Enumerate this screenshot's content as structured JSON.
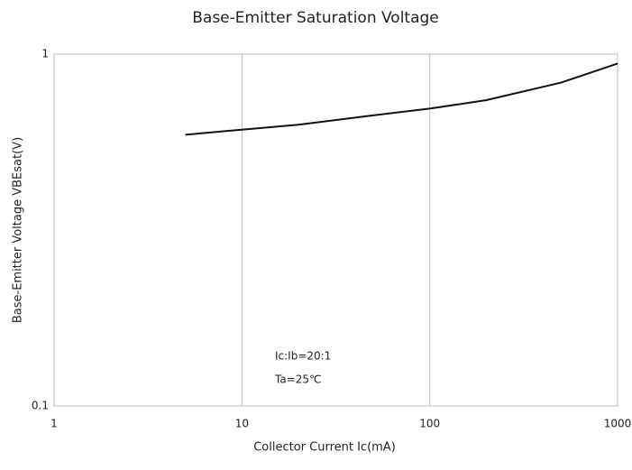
{
  "chart_data": {
    "type": "line",
    "title": "Base-Emitter Saturation Voltage",
    "x_label": "Collector Current  Ic(mA)",
    "y_label": "Base-Emitter Voltage  VBEsat(V)",
    "annotations": [
      "Ic:Ib=20:1",
      "Ta=25℃"
    ],
    "log_x": true,
    "log_y": true,
    "grid": true,
    "xlim": [
      1,
      1000
    ],
    "xticks": [
      1,
      10,
      100,
      1000
    ],
    "ylim": [
      0.1,
      1
    ],
    "yticks": [
      0.1,
      1
    ],
    "x": [
      5,
      10,
      20,
      50,
      100,
      200,
      500,
      1000
    ],
    "series": [
      {
        "name": "VBEsat",
        "color": "#111111",
        "values": [
          0.59,
          0.61,
          0.63,
          0.67,
          0.7,
          0.74,
          0.83,
          0.94
        ]
      }
    ]
  }
}
